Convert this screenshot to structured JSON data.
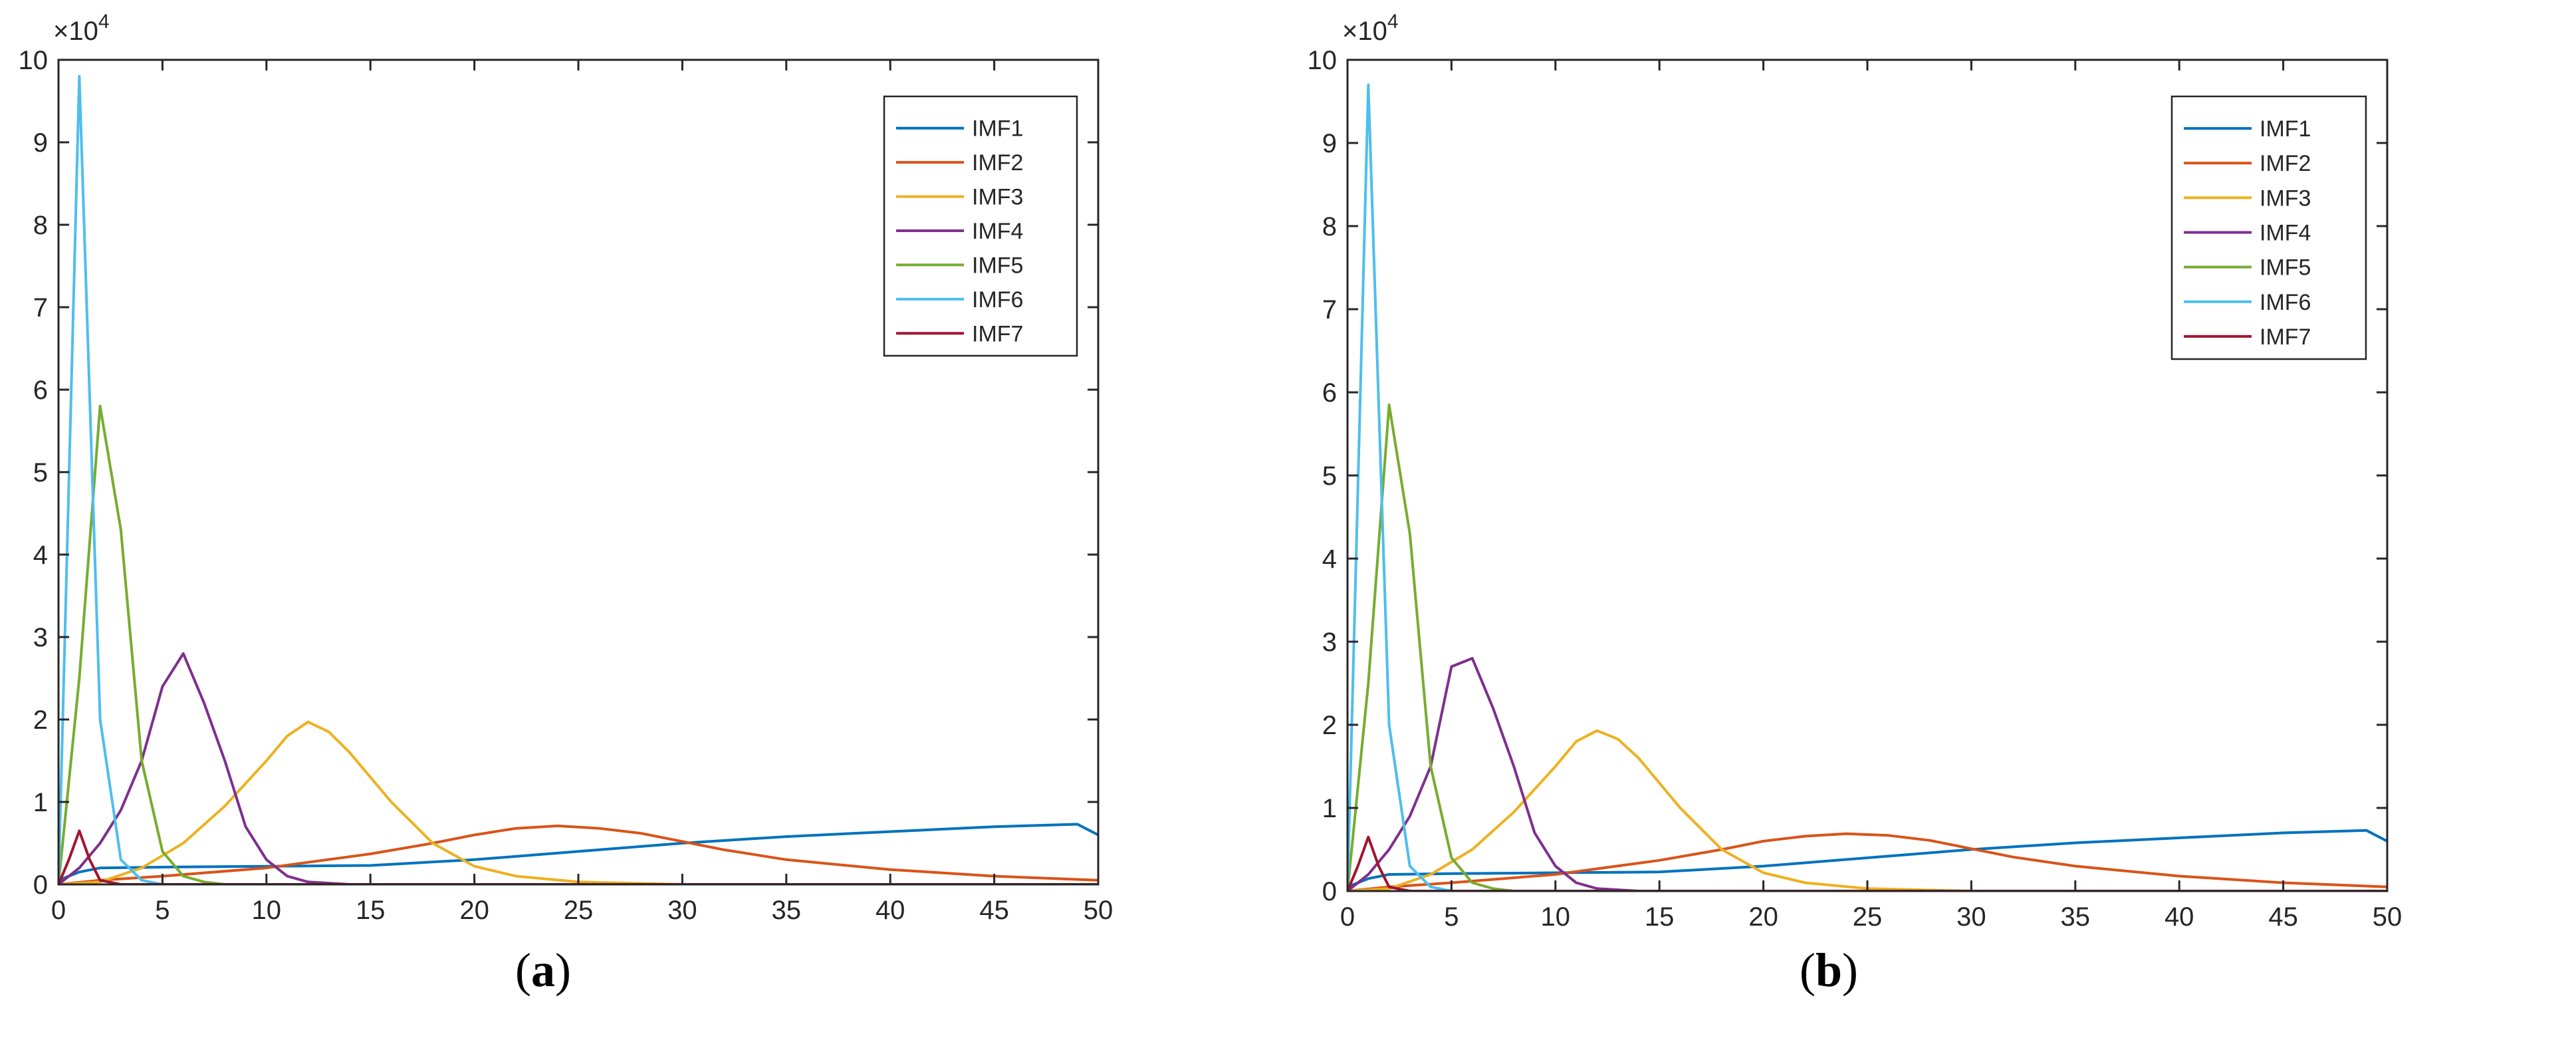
{
  "chart_data": [
    {
      "panel": "a",
      "caption_letter": "a",
      "type": "line",
      "title": "",
      "xlabel": "",
      "ylabel": "",
      "xlim": [
        0,
        50
      ],
      "ylim": [
        0,
        100000
      ],
      "y_multiplier_label": "×10",
      "y_multiplier_exponent": "4",
      "x_ticks": [
        0,
        5,
        10,
        15,
        20,
        25,
        30,
        35,
        40,
        45,
        50
      ],
      "y_ticks": [
        0,
        1,
        2,
        3,
        4,
        5,
        6,
        7,
        8,
        9,
        10
      ],
      "grid": false,
      "legend_placement": "top-right",
      "colors": [
        "#0072BD",
        "#D95319",
        "#EDB120",
        "#7E2F8E",
        "#77AC30",
        "#4DBEEE",
        "#A2142F"
      ],
      "series": [
        {
          "name": "IMF1",
          "x": [
            0,
            1,
            2,
            5,
            10,
            15,
            20,
            25,
            30,
            35,
            40,
            45,
            49,
            50
          ],
          "values": [
            500,
            1500,
            2000,
            2100,
            2200,
            2300,
            3000,
            4000,
            5000,
            5800,
            6400,
            7000,
            7300,
            6000
          ]
        },
        {
          "name": "IMF2",
          "x": [
            0,
            2,
            5,
            10,
            15,
            18,
            20,
            22,
            24,
            26,
            28,
            30,
            32,
            35,
            40,
            45,
            50
          ],
          "values": [
            0,
            500,
            1000,
            2000,
            3700,
            5000,
            6000,
            6800,
            7100,
            6800,
            6200,
            5200,
            4200,
            3000,
            1800,
            1000,
            500
          ]
        },
        {
          "name": "IMF3",
          "x": [
            0,
            2,
            4,
            6,
            8,
            10,
            11,
            12,
            13,
            14,
            16,
            18,
            20,
            22,
            25,
            30,
            50
          ],
          "values": [
            0,
            300,
            2000,
            5000,
            9500,
            15000,
            18000,
            19700,
            18500,
            16000,
            10000,
            5000,
            2200,
            1000,
            300,
            0,
            0
          ]
        },
        {
          "name": "IMF4",
          "x": [
            0,
            1,
            2,
            3,
            4,
            5,
            6,
            7,
            8,
            9,
            10,
            11,
            12,
            14,
            20,
            50
          ],
          "values": [
            0,
            2000,
            5000,
            9000,
            15000,
            24000,
            28000,
            22000,
            15000,
            7000,
            3000,
            1000,
            300,
            0,
            0,
            0
          ]
        },
        {
          "name": "IMF5",
          "x": [
            0,
            1,
            2,
            3,
            4,
            5,
            6,
            7,
            8,
            10,
            50
          ],
          "values": [
            0,
            25000,
            58000,
            43000,
            15000,
            4000,
            1000,
            300,
            0,
            0,
            0
          ]
        },
        {
          "name": "IMF6",
          "x": [
            0,
            1,
            2,
            3,
            4,
            5,
            6,
            8,
            50
          ],
          "values": [
            0,
            98000,
            20000,
            3000,
            500,
            0,
            0,
            0,
            0
          ]
        },
        {
          "name": "IMF7",
          "x": [
            0,
            0.5,
            1,
            1.5,
            2,
            3,
            5,
            50
          ],
          "values": [
            0,
            3000,
            6500,
            3000,
            500,
            0,
            0,
            0
          ]
        }
      ]
    },
    {
      "panel": "b",
      "caption_letter": "b",
      "type": "line",
      "title": "",
      "xlabel": "",
      "ylabel": "",
      "xlim": [
        0,
        50
      ],
      "ylim": [
        0,
        100000
      ],
      "y_multiplier_label": "×10",
      "y_multiplier_exponent": "4",
      "x_ticks": [
        0,
        5,
        10,
        15,
        20,
        25,
        30,
        35,
        40,
        45,
        50
      ],
      "y_ticks": [
        0,
        1,
        2,
        3,
        4,
        5,
        6,
        7,
        8,
        9,
        10
      ],
      "grid": false,
      "legend_placement": "top-right",
      "colors": [
        "#0072BD",
        "#D95319",
        "#EDB120",
        "#7E2F8E",
        "#77AC30",
        "#4DBEEE",
        "#A2142F"
      ],
      "series": [
        {
          "name": "IMF1",
          "x": [
            0,
            1,
            2,
            5,
            10,
            15,
            20,
            25,
            30,
            35,
            40,
            45,
            49,
            50
          ],
          "values": [
            500,
            1500,
            2000,
            2100,
            2200,
            2300,
            3000,
            4000,
            5000,
            5800,
            6400,
            7000,
            7300,
            6000
          ]
        },
        {
          "name": "IMF2",
          "x": [
            0,
            2,
            5,
            10,
            15,
            18,
            20,
            22,
            24,
            26,
            28,
            30,
            32,
            35,
            40,
            45,
            50
          ],
          "values": [
            0,
            500,
            1000,
            2000,
            3700,
            5000,
            6000,
            6600,
            6900,
            6700,
            6100,
            5100,
            4100,
            3000,
            1800,
            1000,
            500
          ]
        },
        {
          "name": "IMF3",
          "x": [
            0,
            2,
            4,
            6,
            8,
            10,
            11,
            12,
            13,
            14,
            16,
            18,
            20,
            22,
            25,
            30,
            50
          ],
          "values": [
            0,
            300,
            2000,
            5000,
            9500,
            15000,
            18000,
            19300,
            18300,
            16000,
            10000,
            5000,
            2200,
            1000,
            300,
            0,
            0
          ]
        },
        {
          "name": "IMF4",
          "x": [
            0,
            1,
            2,
            3,
            4,
            5,
            6,
            7,
            8,
            9,
            10,
            11,
            12,
            14,
            20,
            50
          ],
          "values": [
            0,
            2000,
            5000,
            9000,
            15000,
            27000,
            28000,
            22000,
            15000,
            7000,
            3000,
            1000,
            300,
            0,
            0,
            0
          ]
        },
        {
          "name": "IMF5",
          "x": [
            0,
            1,
            2,
            3,
            4,
            5,
            6,
            7,
            8,
            10,
            50
          ],
          "values": [
            0,
            25000,
            58500,
            43000,
            15000,
            4000,
            1000,
            300,
            0,
            0,
            0
          ]
        },
        {
          "name": "IMF6",
          "x": [
            0,
            1,
            2,
            3,
            4,
            5,
            6,
            8,
            50
          ],
          "values": [
            0,
            97000,
            20000,
            3000,
            500,
            0,
            0,
            0,
            0
          ]
        },
        {
          "name": "IMF7",
          "x": [
            0,
            0.5,
            1,
            1.5,
            2,
            3,
            5,
            50
          ],
          "values": [
            0,
            3000,
            6500,
            3000,
            500,
            0,
            0,
            0
          ]
        }
      ]
    }
  ]
}
